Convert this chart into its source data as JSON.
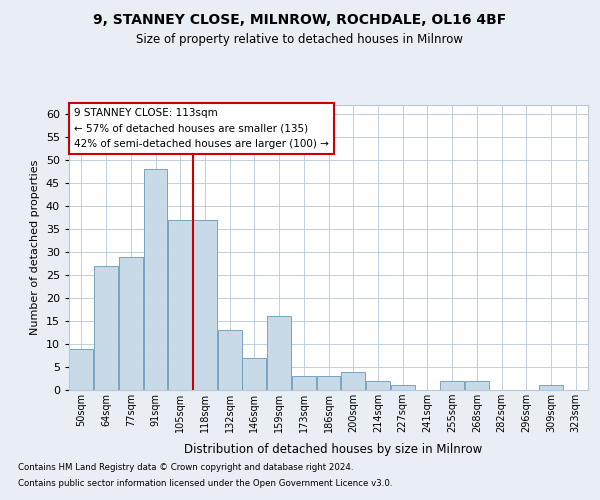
{
  "title1": "9, STANNEY CLOSE, MILNROW, ROCHDALE, OL16 4BF",
  "title2": "Size of property relative to detached houses in Milnrow",
  "xlabel": "Distribution of detached houses by size in Milnrow",
  "ylabel": "Number of detached properties",
  "categories": [
    "50sqm",
    "64sqm",
    "77sqm",
    "91sqm",
    "105sqm",
    "118sqm",
    "132sqm",
    "146sqm",
    "159sqm",
    "173sqm",
    "186sqm",
    "200sqm",
    "214sqm",
    "227sqm",
    "241sqm",
    "255sqm",
    "268sqm",
    "282sqm",
    "296sqm",
    "309sqm",
    "323sqm"
  ],
  "values": [
    9,
    27,
    29,
    48,
    37,
    37,
    13,
    7,
    16,
    3,
    3,
    4,
    2,
    1,
    0,
    2,
    2,
    0,
    0,
    1,
    0
  ],
  "bar_color": "#c8d9e8",
  "bar_edge_color": "#6699bb",
  "vline_x": 4.5,
  "vline_color": "#cc0000",
  "annotation_text": "9 STANNEY CLOSE: 113sqm\n← 57% of detached houses are smaller (135)\n42% of semi-detached houses are larger (100) →",
  "annotation_box_color": "#ffffff",
  "annotation_box_edge": "#cc0000",
  "ylim": [
    0,
    62
  ],
  "yticks": [
    0,
    5,
    10,
    15,
    20,
    25,
    30,
    35,
    40,
    45,
    50,
    55,
    60
  ],
  "footer1": "Contains HM Land Registry data © Crown copyright and database right 2024.",
  "footer2": "Contains public sector information licensed under the Open Government Licence v3.0.",
  "bg_color": "#e8eef4",
  "plot_bg_color": "#ffffff",
  "grid_color": "#b8c8d8"
}
